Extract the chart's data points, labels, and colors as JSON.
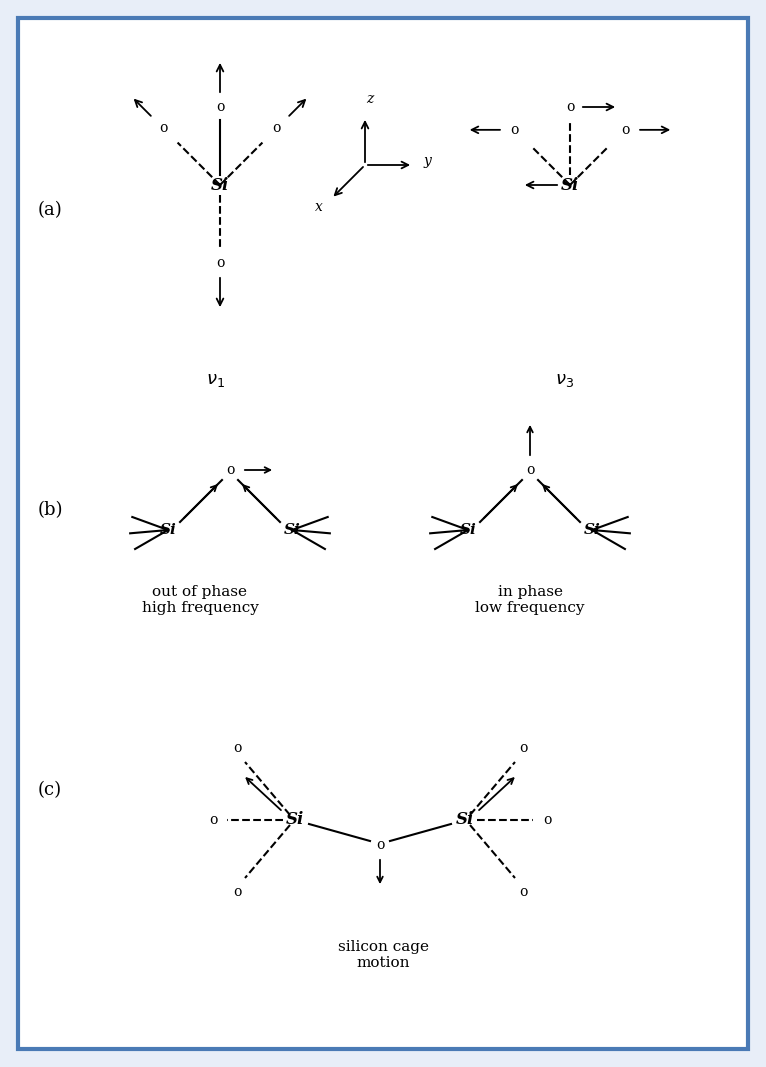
{
  "bg_color": "#e8eef8",
  "border_color": "#4a7ab5",
  "text_color": "#000000",
  "panel_a_label": "(a)",
  "panel_b_label": "(b)",
  "panel_c_label": "(c)",
  "out_of_phase_label": "out of phase\nhigh frequency",
  "in_phase_label": "in phase\nlow frequency",
  "cage_label": "silicon cage\nmotion"
}
